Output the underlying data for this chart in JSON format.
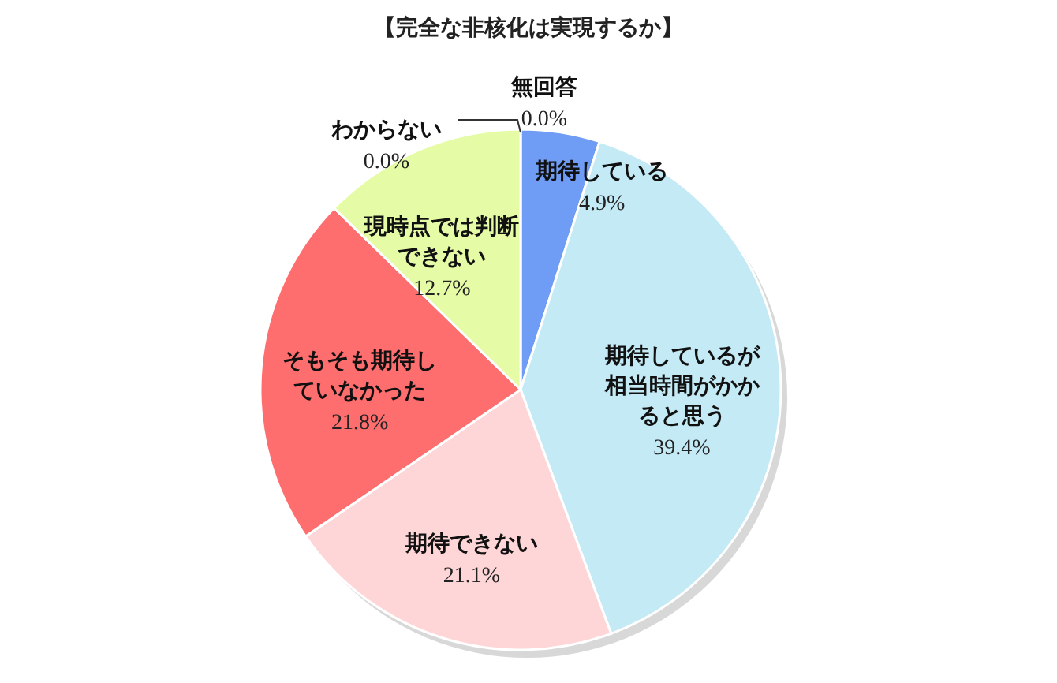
{
  "chart_data": {
    "type": "pie",
    "title": "【完全な非核化は実現するか】",
    "categories": [
      "無回答",
      "期待している",
      "期待しているが相当時間がかかると思う",
      "期待できない",
      "そもそも期待していなかった",
      "現時点では判断できない",
      "わからない"
    ],
    "values": [
      0.0,
      4.9,
      39.4,
      21.1,
      21.8,
      12.7,
      0.0
    ],
    "value_labels": [
      "0.0%",
      "4.9%",
      "39.4%",
      "21.1%",
      "21.8%",
      "12.7%",
      "0.0%"
    ],
    "colors": [
      null,
      "#6f9cf5",
      "#c4eaf6",
      "#ffd6d8",
      "#ff6e6e",
      "#e6fba6",
      null
    ]
  }
}
